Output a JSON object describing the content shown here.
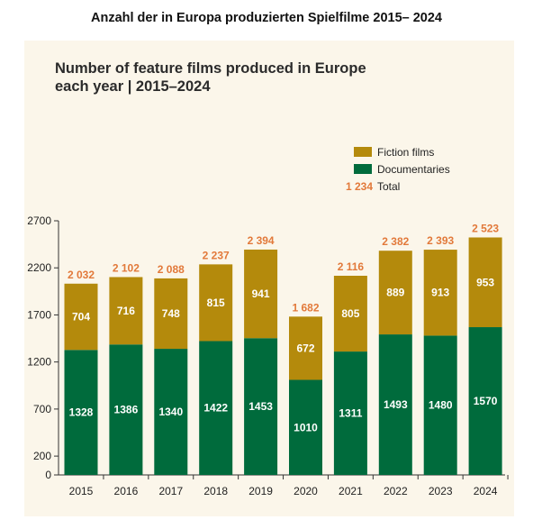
{
  "page": {
    "top_title": "Anzahl der in Europa produzierten Spielfilme 2015– 2024"
  },
  "colors": {
    "fiction": "#b48a0c",
    "documentaries": "#006b3c",
    "total": "#e2793a",
    "panel": "#fbf6ea"
  },
  "chart_data": {
    "type": "bar",
    "stacked": true,
    "title": "Number of feature films produced in Europe each year | 2015–2024",
    "title_lines": [
      "Number of feature films produced in Europe",
      "each year | 2015–2024"
    ],
    "categories": [
      "2015",
      "2016",
      "2017",
      "2018",
      "2019",
      "2020",
      "2021",
      "2022",
      "2023",
      "2024"
    ],
    "series": [
      {
        "name": "Documentaries",
        "values": [
          1328,
          1386,
          1340,
          1422,
          1453,
          1010,
          1311,
          1493,
          1480,
          1570
        ]
      },
      {
        "name": "Fiction films",
        "values": [
          704,
          716,
          748,
          815,
          941,
          672,
          805,
          889,
          913,
          953
        ]
      }
    ],
    "totals": [
      2032,
      2102,
      2088,
      2237,
      2394,
      1682,
      2116,
      2382,
      2393,
      2523
    ],
    "total_labels": [
      "2 032",
      "2 102",
      "2 088",
      "2 237",
      "2 394",
      "1 682",
      "2 116",
      "2 382",
      "2 393",
      "2 523"
    ],
    "yticks": [
      0,
      200,
      700,
      1200,
      1700,
      2200,
      2700
    ],
    "ylim": [
      0,
      2700
    ],
    "legend": {
      "placement": "top-right",
      "items": [
        "Fiction films",
        "Documentaries"
      ],
      "total_sample": "1 234",
      "total_text": "Total"
    },
    "xlabel": "",
    "ylabel": "",
    "grid": false
  }
}
